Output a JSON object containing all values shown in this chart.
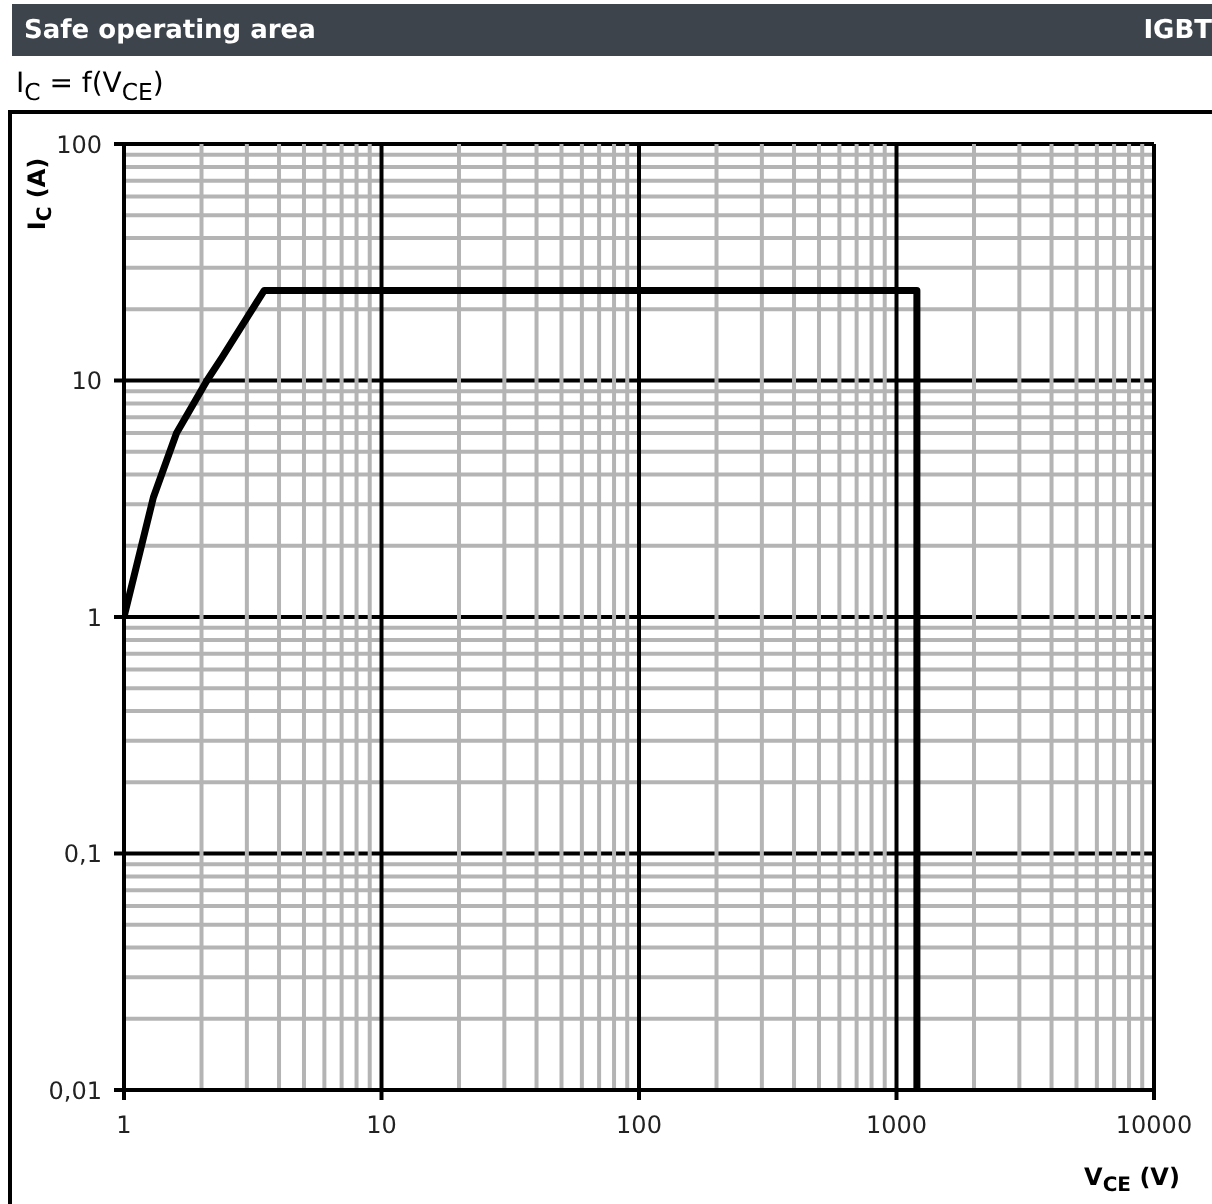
{
  "chart_data": {
    "type": "line",
    "title": "Safe operating area",
    "subtitle": "I$_{C}$ = f(V$_{CE}$)",
    "annotations": [
      "IGBT"
    ],
    "xlabel": "V$_{CE}$ (V)",
    "ylabel": "I$_{C}$ (A)",
    "x": [
      1,
      1.3,
      1.6,
      2.1,
      2.4,
      3.5,
      1200,
      1200
    ],
    "series": [
      {
        "color": "#000000",
        "values": [
          1,
          3.2,
          6,
          10,
          12.5,
          24,
          24,
          0.01
        ]
      }
    ],
    "log": "xy",
    "xlim": [
      1,
      10000
    ],
    "ylim": [
      0.01,
      100
    ],
    "xticks": [
      1,
      10,
      100,
      1000,
      10000
    ],
    "yticks": [
      {
        "value": 0.01,
        "label": "0,01"
      },
      {
        "value": 0.1,
        "label": "0,1"
      },
      1,
      10,
      100
    ],
    "grid": true,
    "line_style": "solid"
  }
}
